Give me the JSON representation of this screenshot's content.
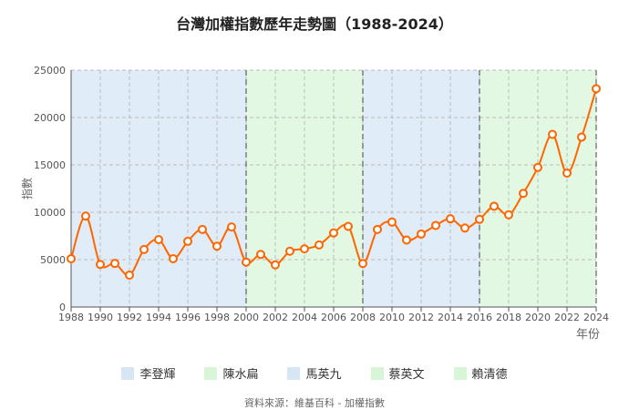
{
  "chart_data": {
    "type": "line",
    "title": "台灣加權指數歷年走勢圖（1988-2024）",
    "xlabel": "年份",
    "ylabel": "指數",
    "xlim": [
      1988,
      2024
    ],
    "ylim": [
      0,
      25000
    ],
    "yticks": [
      0,
      5000,
      10000,
      15000,
      20000,
      25000
    ],
    "xticks": [
      1988,
      1990,
      1992,
      1994,
      1996,
      1998,
      2000,
      2002,
      2004,
      2006,
      2008,
      2010,
      2012,
      2014,
      2016,
      2018,
      2020,
      2022,
      2024
    ],
    "grid": true,
    "line_color": "#ff6600",
    "x": [
      1988,
      1989,
      1990,
      1991,
      1992,
      1993,
      1994,
      1995,
      1996,
      1997,
      1998,
      1999,
      2000,
      2001,
      2002,
      2003,
      2004,
      2005,
      2006,
      2007,
      2008,
      2009,
      2010,
      2011,
      2012,
      2013,
      2014,
      2015,
      2016,
      2017,
      2018,
      2019,
      2020,
      2021,
      2022,
      2023,
      2024
    ],
    "values": [
      5100,
      9600,
      4500,
      4600,
      3370,
      6070,
      7120,
      5100,
      6930,
      8190,
      6420,
      8450,
      4740,
      5550,
      4450,
      5890,
      6140,
      6550,
      7820,
      8510,
      4590,
      8190,
      8970,
      7070,
      7700,
      8610,
      9310,
      8340,
      9250,
      10640,
      9730,
      12000,
      14730,
      18220,
      14140,
      17930,
      23040
    ],
    "periods": [
      {
        "name": "李登輝",
        "start": 1988,
        "end": 2000,
        "color": "#d6e6f5"
      },
      {
        "name": "陳水扁",
        "start": 2000,
        "end": 2008,
        "color": "#d8f5d8"
      },
      {
        "name": "馬英九",
        "start": 2008,
        "end": 2016,
        "color": "#d6e6f5"
      },
      {
        "name": "蔡英文",
        "start": 2016,
        "end": 2024,
        "color": "#d8f5d8"
      },
      {
        "name": "賴清德",
        "start": 2024,
        "end": 2024,
        "color": "#d8f5d8"
      }
    ],
    "legend_position": "bottom"
  },
  "source": "資料來源：維基百科 - 加權指數"
}
